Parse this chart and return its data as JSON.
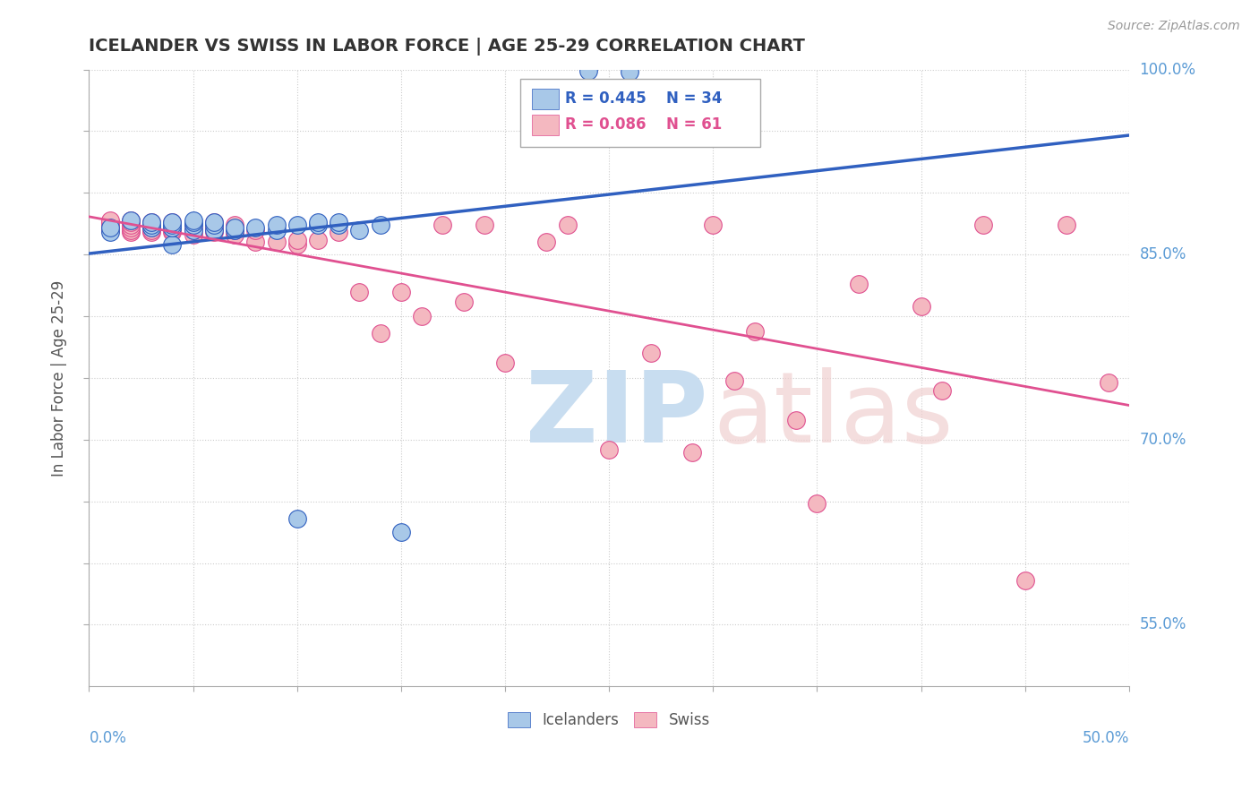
{
  "title": "ICELANDER VS SWISS IN LABOR FORCE | AGE 25-29 CORRELATION CHART",
  "source_text": "Source: ZipAtlas.com",
  "ylabel_label": "In Labor Force | Age 25-29",
  "xmin": 0.0,
  "xmax": 0.5,
  "ymin": 0.5,
  "ymax": 1.0,
  "legend_blue_r": "R = 0.445",
  "legend_blue_n": "N = 34",
  "legend_pink_r": "R = 0.086",
  "legend_pink_n": "N = 61",
  "blue_color": "#a8c8e8",
  "pink_color": "#f4b8c0",
  "blue_line_color": "#3060c0",
  "pink_line_color": "#e05090",
  "icelanders_x": [
    0.01,
    0.01,
    0.02,
    0.03,
    0.03,
    0.03,
    0.04,
    0.04,
    0.04,
    0.04,
    0.04,
    0.05,
    0.05,
    0.05,
    0.05,
    0.06,
    0.06,
    0.06,
    0.07,
    0.07,
    0.08,
    0.09,
    0.09,
    0.1,
    0.1,
    0.11,
    0.11,
    0.12,
    0.12,
    0.13,
    0.14,
    0.15,
    0.24,
    0.26
  ],
  "icelanders_y": [
    0.868,
    0.872,
    0.878,
    0.872,
    0.874,
    0.876,
    0.858,
    0.872,
    0.872,
    0.874,
    0.876,
    0.87,
    0.874,
    0.876,
    0.878,
    0.87,
    0.874,
    0.876,
    0.87,
    0.872,
    0.872,
    0.87,
    0.874,
    0.636,
    0.874,
    0.874,
    0.876,
    0.874,
    0.876,
    0.87,
    0.874,
    0.625,
    0.999,
    0.998
  ],
  "swiss_x": [
    0.01,
    0.01,
    0.01,
    0.01,
    0.01,
    0.02,
    0.02,
    0.02,
    0.02,
    0.02,
    0.02,
    0.03,
    0.03,
    0.03,
    0.03,
    0.04,
    0.04,
    0.04,
    0.04,
    0.05,
    0.05,
    0.05,
    0.06,
    0.06,
    0.06,
    0.06,
    0.07,
    0.07,
    0.07,
    0.08,
    0.08,
    0.09,
    0.1,
    0.1,
    0.11,
    0.12,
    0.13,
    0.14,
    0.15,
    0.16,
    0.17,
    0.18,
    0.19,
    0.2,
    0.22,
    0.23,
    0.25,
    0.27,
    0.29,
    0.3,
    0.31,
    0.32,
    0.34,
    0.35,
    0.37,
    0.4,
    0.41,
    0.43,
    0.45,
    0.47,
    0.49
  ],
  "swiss_y": [
    0.87,
    0.872,
    0.874,
    0.876,
    0.878,
    0.868,
    0.87,
    0.872,
    0.874,
    0.876,
    0.878,
    0.868,
    0.87,
    0.872,
    0.876,
    0.868,
    0.87,
    0.872,
    0.876,
    0.866,
    0.87,
    0.874,
    0.868,
    0.87,
    0.872,
    0.876,
    0.866,
    0.87,
    0.874,
    0.86,
    0.87,
    0.86,
    0.858,
    0.862,
    0.862,
    0.868,
    0.82,
    0.786,
    0.82,
    0.8,
    0.874,
    0.812,
    0.874,
    0.762,
    0.86,
    0.874,
    0.692,
    0.77,
    0.69,
    0.874,
    0.748,
    0.788,
    0.716,
    0.648,
    0.826,
    0.808,
    0.74,
    0.874,
    0.586,
    0.874,
    0.746
  ]
}
